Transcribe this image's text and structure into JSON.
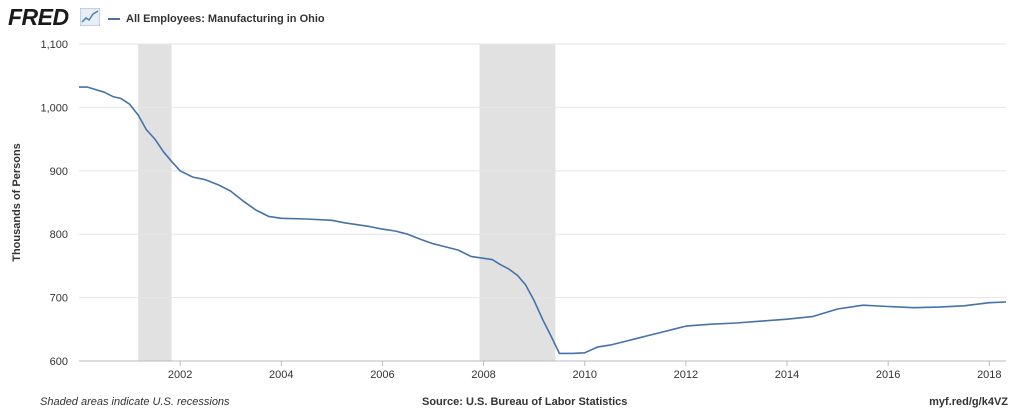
{
  "header": {
    "logo_text": "FRED",
    "series_label": "All Employees: Manufacturing in Ohio"
  },
  "footer": {
    "note": "Shaded areas indicate U.S. recessions",
    "source": "Source: U.S. Bureau of Labor Statistics",
    "link": "myf.red/g/k4VZ"
  },
  "colors": {
    "series": "#4572a7",
    "recession": "#e1e1e1",
    "grid": "#e6e6e6",
    "plot_bg": "#ffffff"
  },
  "chart_data": {
    "type": "line",
    "title": "",
    "xlabel": "",
    "ylabel": "Thousands of Persons",
    "xlim": [
      2000.0,
      2018.33
    ],
    "ylim": [
      600,
      1100
    ],
    "yticks": [
      600,
      700,
      800,
      900,
      1000,
      1100
    ],
    "ytick_labels": [
      "600",
      "700",
      "800",
      "900",
      "1,000",
      "1,100"
    ],
    "xticks": [
      2002,
      2004,
      2006,
      2008,
      2010,
      2012,
      2014,
      2016,
      2018
    ],
    "xtick_labels": [
      "2002",
      "2004",
      "2006",
      "2008",
      "2010",
      "2012",
      "2014",
      "2016",
      "2018"
    ],
    "grid": "horizontal",
    "legend": "top-left",
    "recessions": [
      [
        2001.17,
        2001.83
      ],
      [
        2007.92,
        2009.42
      ]
    ],
    "series": [
      {
        "name": "All Employees: Manufacturing in Ohio",
        "x": [
          2000.0,
          2000.17,
          2000.33,
          2000.5,
          2000.67,
          2000.83,
          2001.0,
          2001.17,
          2001.33,
          2001.5,
          2001.67,
          2001.83,
          2002.0,
          2002.25,
          2002.5,
          2002.75,
          2003.0,
          2003.25,
          2003.5,
          2003.75,
          2004.0,
          2004.5,
          2005.0,
          2005.25,
          2005.5,
          2005.75,
          2006.0,
          2006.25,
          2006.5,
          2006.75,
          2007.0,
          2007.25,
          2007.5,
          2007.75,
          2008.0,
          2008.17,
          2008.33,
          2008.5,
          2008.67,
          2008.83,
          2009.0,
          2009.17,
          2009.33,
          2009.5,
          2009.75,
          2010.0,
          2010.25,
          2010.5,
          2010.75,
          2011.0,
          2011.25,
          2011.5,
          2011.75,
          2012.0,
          2012.5,
          2013.0,
          2013.5,
          2014.0,
          2014.5,
          2015.0,
          2015.5,
          2016.0,
          2016.25,
          2016.5,
          2017.0,
          2017.5,
          2018.0,
          2018.33
        ],
        "values": [
          1032,
          1032,
          1028,
          1024,
          1017,
          1014,
          1005,
          988,
          965,
          950,
          930,
          915,
          900,
          890,
          886,
          878,
          868,
          852,
          838,
          828,
          825,
          824,
          822,
          818,
          815,
          812,
          808,
          805,
          800,
          792,
          785,
          780,
          775,
          765,
          762,
          760,
          752,
          745,
          735,
          720,
          695,
          665,
          640,
          612,
          612,
          613,
          622,
          625,
          630,
          635,
          640,
          645,
          650,
          655,
          658,
          660,
          663,
          666,
          670,
          682,
          688,
          686,
          685,
          684,
          685,
          687,
          692,
          693
        ]
      }
    ]
  }
}
